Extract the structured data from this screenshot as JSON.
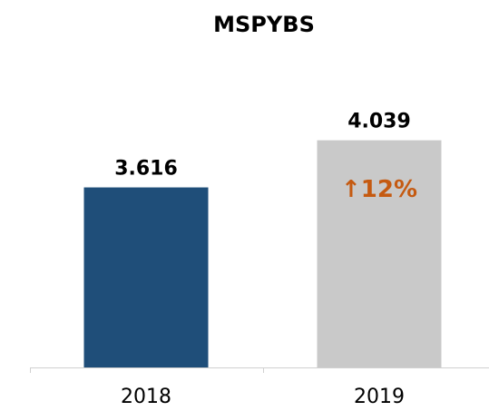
{
  "chart_data": {
    "type": "bar",
    "title": "MSPYBS",
    "categories": [
      "2018",
      "2019"
    ],
    "values": [
      3.616,
      4.039
    ],
    "colors": [
      "#1f4e79",
      "#c9c9c9"
    ],
    "ylim": [
      2,
      4.5
    ],
    "annotation": {
      "text": "↑12%",
      "color": "#c55a11"
    }
  }
}
